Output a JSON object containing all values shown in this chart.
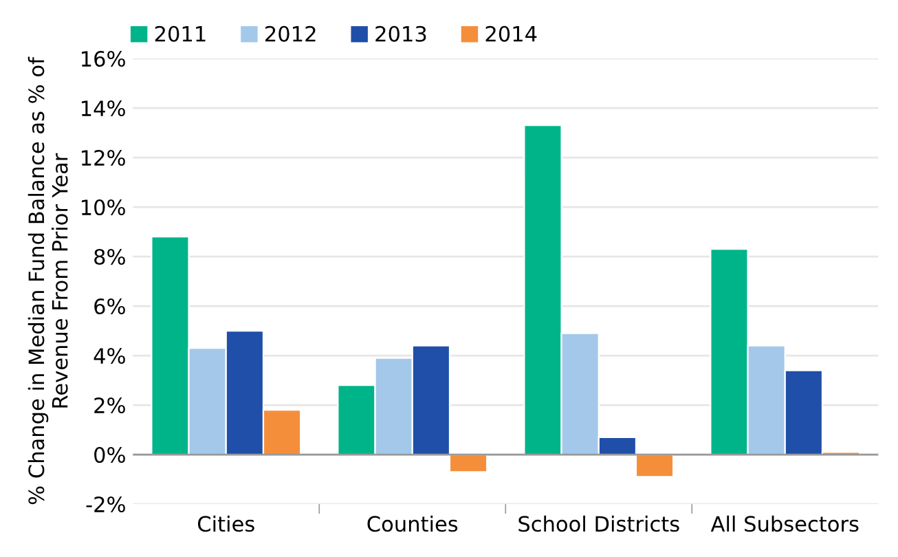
{
  "chart_data": {
    "type": "bar",
    "ylabel": "% Change in Median Fund Balance as % of\nRevenue From Prior Year",
    "categories": [
      "Cities",
      "Counties",
      "School Districts",
      "All Subsectors"
    ],
    "series": [
      {
        "name": "2011",
        "color": "#00b48a",
        "values": [
          8.8,
          2.8,
          13.3,
          8.3
        ]
      },
      {
        "name": "2012",
        "color": "#a3c8ea",
        "values": [
          4.3,
          3.9,
          4.9,
          4.4
        ]
      },
      {
        "name": "2013",
        "color": "#1f4fa8",
        "values": [
          5.0,
          4.4,
          0.7,
          3.4
        ]
      },
      {
        "name": "2014",
        "color": "#f58e3a",
        "values": [
          1.8,
          -0.7,
          -0.9,
          0.1
        ]
      }
    ],
    "ylim": [
      -2,
      16
    ],
    "yticks": [
      {
        "value": -2,
        "label": "-2%"
      },
      {
        "value": 0,
        "label": "0%"
      },
      {
        "value": 2,
        "label": "2%"
      },
      {
        "value": 4,
        "label": "4%"
      },
      {
        "value": 6,
        "label": "6%"
      },
      {
        "value": 8,
        "label": "8%"
      },
      {
        "value": 10,
        "label": "10%"
      },
      {
        "value": 12,
        "label": "12%"
      },
      {
        "value": 14,
        "label": "14%"
      },
      {
        "value": 16,
        "label": "16%"
      }
    ],
    "grid": "y",
    "legend": "top left"
  }
}
